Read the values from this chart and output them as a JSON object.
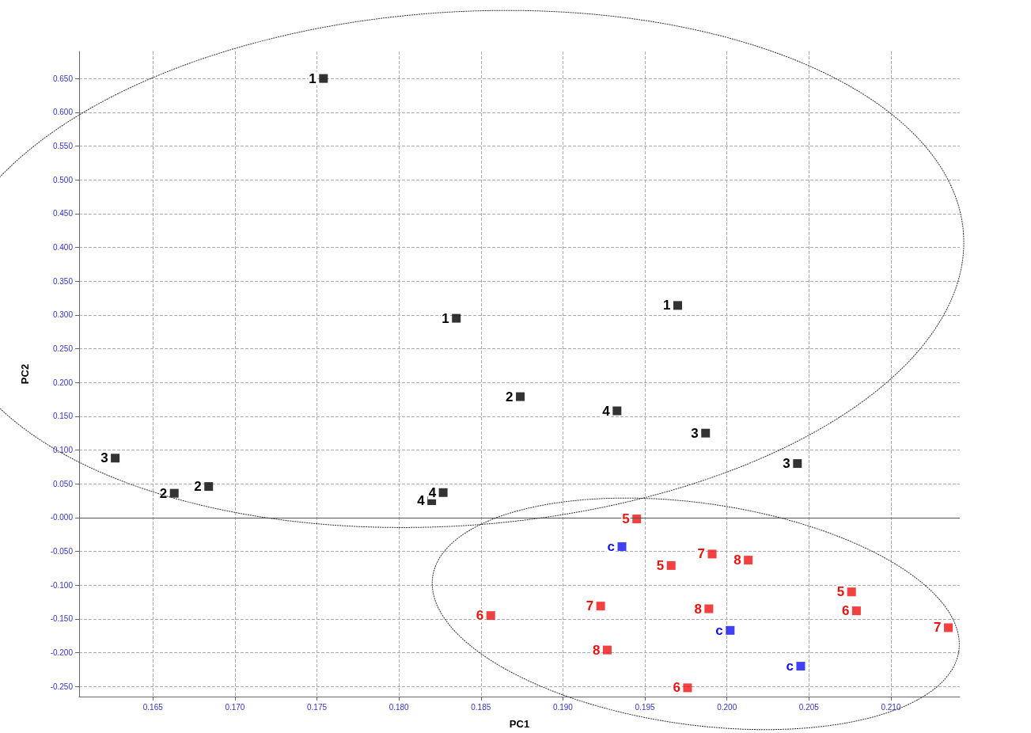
{
  "chart_data": {
    "type": "scatter",
    "xlabel": "PC1",
    "ylabel": "PC2",
    "xlim": [
      0.1605,
      0.2142
    ],
    "xticks": [
      {
        "value": 0.165,
        "label": "0.165"
      },
      {
        "value": 0.17,
        "label": "0.170"
      },
      {
        "value": 0.175,
        "label": "0.175"
      },
      {
        "value": 0.18,
        "label": "0.180"
      },
      {
        "value": 0.185,
        "label": "0.185"
      },
      {
        "value": 0.19,
        "label": "0.190"
      },
      {
        "value": 0.195,
        "label": "0.195"
      },
      {
        "value": 0.2,
        "label": "0.200"
      },
      {
        "value": 0.205,
        "label": "0.205"
      },
      {
        "value": 0.21,
        "label": "0.210"
      }
    ],
    "ylim": [
      -0.265,
      0.69
    ],
    "yticks": [
      {
        "value": -0.25,
        "label": "-0.250"
      },
      {
        "value": -0.2,
        "label": "-0.200"
      },
      {
        "value": -0.15,
        "label": "-0.150"
      },
      {
        "value": -0.1,
        "label": "-0.100"
      },
      {
        "value": -0.05,
        "label": "-0.050"
      },
      {
        "value": 0,
        "label": "-0.000"
      },
      {
        "value": 0.05,
        "label": "0.050"
      },
      {
        "value": 0.1,
        "label": "0.100"
      },
      {
        "value": 0.15,
        "label": "0.150"
      },
      {
        "value": 0.2,
        "label": "0.200"
      },
      {
        "value": 0.25,
        "label": "0.250"
      },
      {
        "value": 0.3,
        "label": "0.300"
      },
      {
        "value": 0.35,
        "label": "0.350"
      },
      {
        "value": 0.4,
        "label": "0.400"
      },
      {
        "value": 0.45,
        "label": "0.450"
      },
      {
        "value": 0.5,
        "label": "0.500"
      },
      {
        "value": 0.55,
        "label": "0.550"
      },
      {
        "value": 0.6,
        "label": "0.600"
      },
      {
        "value": 0.65,
        "label": "0.650"
      }
    ],
    "grid": true,
    "marker": "square",
    "ref_lines": [
      {
        "axis": "y",
        "value": 0,
        "color": "#555555",
        "line_style": "solid"
      }
    ],
    "series": [
      {
        "color": "#000000",
        "x": [
          0.1754,
          0.1835,
          0.197,
          0.1874,
          0.1933,
          0.1987,
          0.2043,
          0.1627,
          0.1663,
          0.1684,
          0.1827,
          0.182
        ],
        "values": [
          0.65,
          0.295,
          0.314,
          0.179,
          0.158,
          0.125,
          0.08,
          0.088,
          0.036,
          0.046,
          0.037,
          0.025
        ]
      },
      {
        "color": "#ee1111",
        "x": [
          0.1945,
          0.1991,
          0.2013,
          0.1966,
          0.2076,
          0.2079,
          0.2135,
          0.1856,
          0.1923,
          0.1989,
          0.1927,
          0.1976
        ],
        "values": [
          -0.002,
          -0.054,
          -0.063,
          -0.071,
          -0.11,
          -0.138,
          -0.163,
          -0.145,
          -0.131,
          -0.135,
          -0.196,
          -0.252
        ]
      },
      {
        "color": "#1111ee",
        "x": [
          0.1936,
          0.2002,
          0.2045
        ],
        "values": [
          -0.043,
          -0.167,
          -0.22
        ]
      }
    ],
    "annotations": [
      {
        "text": "1",
        "x": 0.1754,
        "y": 0.65
      },
      {
        "text": "1",
        "x": 0.1835,
        "y": 0.295
      },
      {
        "text": "1",
        "x": 0.197,
        "y": 0.314
      },
      {
        "text": "2",
        "x": 0.1874,
        "y": 0.179
      },
      {
        "text": "4",
        "x": 0.1933,
        "y": 0.158
      },
      {
        "text": "3",
        "x": 0.1987,
        "y": 0.125
      },
      {
        "text": "3",
        "x": 0.2043,
        "y": 0.08
      },
      {
        "text": "3",
        "x": 0.1627,
        "y": 0.088
      },
      {
        "text": "2",
        "x": 0.1663,
        "y": 0.036
      },
      {
        "text": "2",
        "x": 0.1684,
        "y": 0.046
      },
      {
        "text": "4",
        "x": 0.1827,
        "y": 0.037
      },
      {
        "text": "4",
        "x": 0.182,
        "y": 0.025
      },
      {
        "text": "5",
        "x": 0.1945,
        "y": -0.002
      },
      {
        "text": "7",
        "x": 0.1991,
        "y": -0.054
      },
      {
        "text": "8",
        "x": 0.2013,
        "y": -0.063
      },
      {
        "text": "5",
        "x": 0.1966,
        "y": -0.071
      },
      {
        "text": "5",
        "x": 0.2076,
        "y": -0.11
      },
      {
        "text": "6",
        "x": 0.2079,
        "y": -0.138
      },
      {
        "text": "7",
        "x": 0.2135,
        "y": -0.163
      },
      {
        "text": "6",
        "x": 0.1856,
        "y": -0.145
      },
      {
        "text": "7",
        "x": 0.1923,
        "y": -0.131
      },
      {
        "text": "8",
        "x": 0.1989,
        "y": -0.135
      },
      {
        "text": "8",
        "x": 0.1927,
        "y": -0.196
      },
      {
        "text": "6",
        "x": 0.1976,
        "y": -0.252
      },
      {
        "text": "c",
        "x": 0.1936,
        "y": -0.043
      },
      {
        "text": "c",
        "x": 0.2002,
        "y": -0.167
      },
      {
        "text": "c",
        "x": 0.2045,
        "y": -0.22
      }
    ]
  }
}
